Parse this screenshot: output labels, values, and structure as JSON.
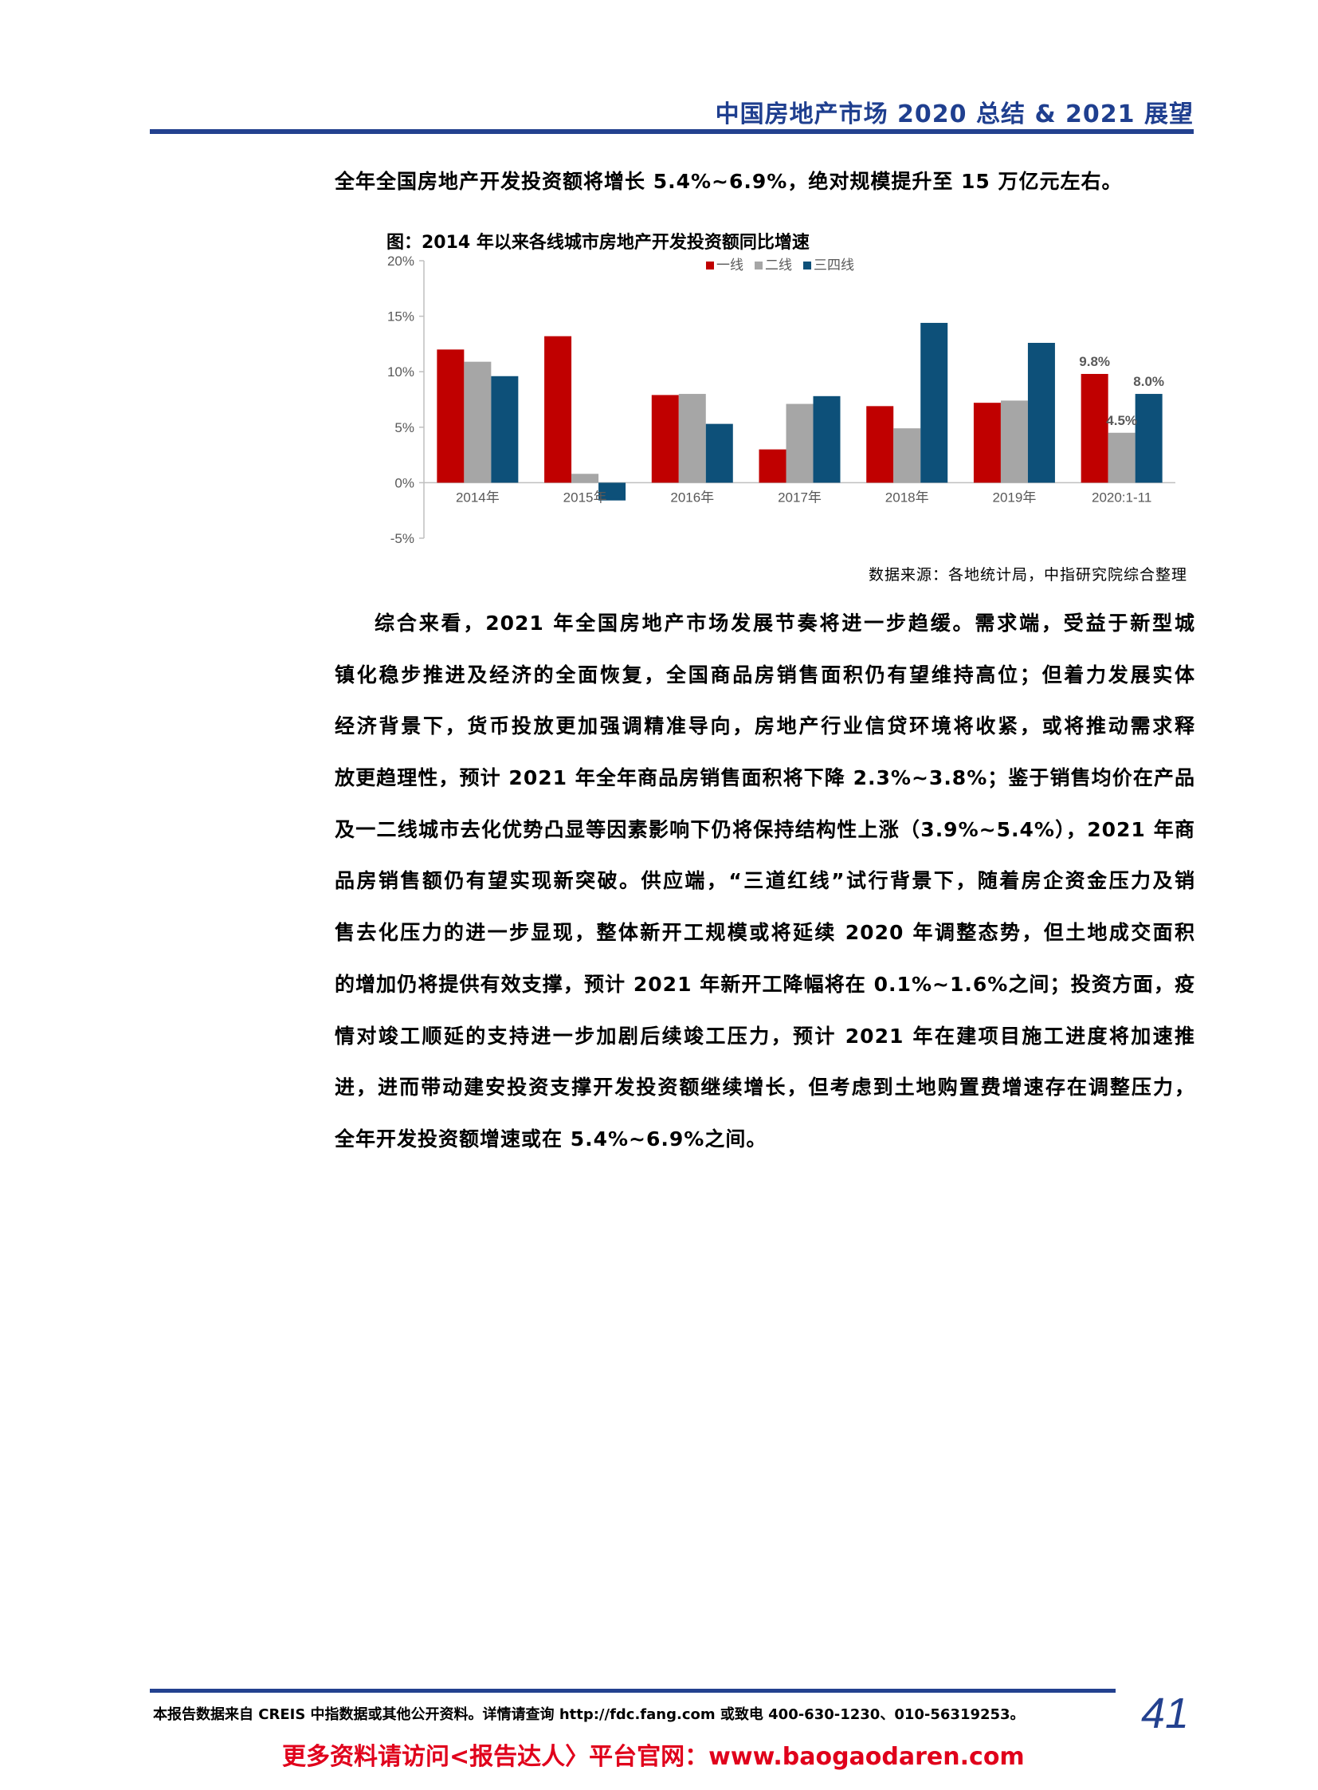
{
  "header": {
    "title": "中国房地产市场 2020 总结 & 2021 展望"
  },
  "lead_text": "全年全国房地产开发投资额将增长 5.4%~6.9%，绝对规模提升至 15 万亿元左右。",
  "figure": {
    "title": "图：2014 年以来各线城市房地产开发投资额同比增速",
    "source": "数据来源：各地统计局，中指研究院综合整理"
  },
  "chart_data": {
    "type": "bar",
    "title": "图：2014 年以来各线城市房地产开发投资额同比增速",
    "categories": [
      "2014年",
      "2015年",
      "2016年",
      "2017年",
      "2018年",
      "2019年",
      "2020:1-11"
    ],
    "series": [
      {
        "name": "一线",
        "color": "#c00000",
        "values": [
          12.0,
          13.2,
          7.9,
          3.0,
          6.9,
          7.2,
          9.8
        ]
      },
      {
        "name": "二线",
        "color": "#a6a6a6",
        "values": [
          10.9,
          0.8,
          8.0,
          7.1,
          4.9,
          7.4,
          4.5
        ]
      },
      {
        "name": "三四线",
        "color": "#0d5079",
        "values": [
          9.6,
          -1.6,
          5.3,
          7.8,
          14.4,
          12.6,
          8.0
        ]
      }
    ],
    "y_ticks": [
      "-5%",
      "0%",
      "5%",
      "10%",
      "15%",
      "20%"
    ],
    "ylim": [
      -5,
      20
    ],
    "data_labels": [
      {
        "series": 0,
        "index": 6,
        "text": "9.8%"
      },
      {
        "series": 1,
        "index": 6,
        "text": "4.5%"
      },
      {
        "series": 2,
        "index": 6,
        "text": "8.0%"
      }
    ],
    "legend_position": "top-right",
    "grid": false
  },
  "paragraph_lines": [
    "综合来看，2021 年全国房地产市场发展节奏将进一步趋缓。需求端，受益于新型城",
    "镇化稳步推进及经济的全面恢复，全国商品房销售面积仍有望维持高位；但着力发展实体",
    "经济背景下，货币投放更加强调精准导向，房地产行业信贷环境将收紧，或将推动需求释",
    "放更趋理性，预计 2021 年全年商品房销售面积将下降 2.3%~3.8%；鉴于销售均价在产品",
    "及一二线城市去化优势凸显等因素影响下仍将保持结构性上涨（3.9%~5.4%），2021 年商",
    "品房销售额仍有望实现新突破。供应端，“三道红线”试行背景下，随着房企资金压力及销",
    "售去化压力的进一步显现，整体新开工规模或将延续 2020 年调整态势，但土地成交面积",
    "的增加仍将提供有效支撑，预计 2021 年新开工降幅将在 0.1%~1.6%之间；投资方面，疫",
    "情对竣工顺延的支持进一步加剧后续竣工压力，预计 2021 年在建项目施工进度将加速推",
    "进，进而带动建安投资支撑开发投资额继续增长，但考虑到土地购置费增速存在调整压力，",
    "全年开发投资额增速或在 5.4%~6.9%之间。"
  ],
  "footer": {
    "note": "本报告数据来自 CREIS 中指数据或其他公开资料。详情请查询 http://fdc.fang.com 或致电 400-630-1230、010-56319253。",
    "page_number": "41",
    "promo": "更多资料请访问<报告达人〉平台官网：www.baogaodaren.com"
  }
}
